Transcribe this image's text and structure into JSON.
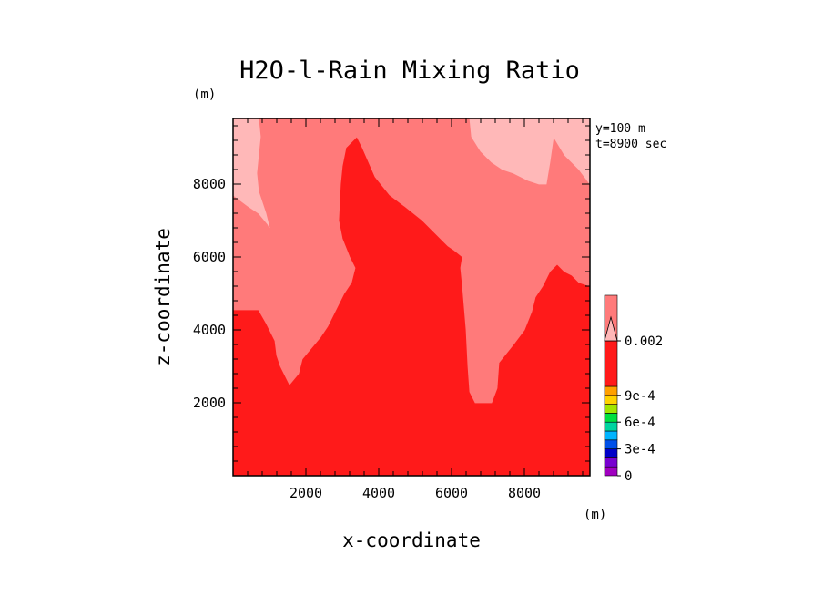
{
  "chart_data": {
    "type": "heatmap",
    "title": "H2O-l-Rain Mixing Ratio",
    "xlabel": "x-coordinate",
    "ylabel": "z-coordinate",
    "x_unit": "(m)",
    "y_unit": "(m)",
    "xlim": [
      0,
      9800
    ],
    "ylim": [
      0,
      9800
    ],
    "xticks": [
      2000,
      4000,
      6000,
      8000
    ],
    "yticks": [
      2000,
      4000,
      6000,
      8000
    ],
    "annotations": [
      "y=100 m",
      "t=8900 sec"
    ],
    "colorbar": {
      "tick_labels": [
        "0",
        "3e-4",
        "6e-4",
        "9e-4",
        "0.002"
      ],
      "tick_values": [
        0,
        0.0003,
        0.0006,
        0.0009,
        0.002
      ],
      "levels": [
        0,
        0.0001,
        0.0002,
        0.0003,
        0.0004,
        0.0005,
        0.0006,
        0.0007,
        0.0008,
        0.0009,
        0.001,
        0.002
      ],
      "colors": [
        "#a000c0",
        "#7800d0",
        "#0000c8",
        "#0050e8",
        "#00b4ff",
        "#00d4a0",
        "#00e040",
        "#a0e600",
        "#ffd200",
        "#ffa000",
        "#ff1a1a",
        "#ff7a7a"
      ],
      "extend_color": "#ffb8b8"
    },
    "regions": [
      {
        "name": "0.001-0.002",
        "color": "#ff1a1a",
        "polygon": [
          [
            0,
            0
          ],
          [
            9800,
            0
          ],
          [
            9800,
            9800
          ],
          [
            0,
            9800
          ]
        ]
      },
      {
        "name": "0.002 band",
        "color": "#ff7a7a",
        "polygon": [
          [
            0,
            4550
          ],
          [
            700,
            4550
          ],
          [
            900,
            4200
          ],
          [
            1150,
            3700
          ],
          [
            1200,
            3300
          ],
          [
            1300,
            3000
          ],
          [
            1550,
            2500
          ],
          [
            1800,
            2800
          ],
          [
            1900,
            3200
          ],
          [
            2150,
            3500
          ],
          [
            2400,
            3800
          ],
          [
            2600,
            4100
          ],
          [
            2900,
            4700
          ],
          [
            3050,
            5000
          ],
          [
            3250,
            5300
          ],
          [
            3350,
            5700
          ],
          [
            3200,
            6000
          ],
          [
            3000,
            6500
          ],
          [
            2900,
            7000
          ],
          [
            2950,
            8000
          ],
          [
            3000,
            8500
          ],
          [
            3100,
            9000
          ],
          [
            3400,
            9300
          ],
          [
            3550,
            9000
          ],
          [
            3900,
            8200
          ],
          [
            4300,
            7700
          ],
          [
            4700,
            7400
          ],
          [
            5200,
            7000
          ],
          [
            5600,
            6600
          ],
          [
            5900,
            6300
          ],
          [
            6050,
            6200
          ],
          [
            6300,
            6000
          ],
          [
            6250,
            5700
          ],
          [
            6300,
            5200
          ],
          [
            6350,
            4600
          ],
          [
            6400,
            4000
          ],
          [
            6450,
            3000
          ],
          [
            6500,
            2300
          ],
          [
            6650,
            2000
          ],
          [
            7100,
            2000
          ],
          [
            7250,
            2400
          ],
          [
            7300,
            3100
          ],
          [
            7700,
            3600
          ],
          [
            8000,
            4000
          ],
          [
            8200,
            4500
          ],
          [
            8300,
            4900
          ],
          [
            8500,
            5200
          ],
          [
            8700,
            5600
          ],
          [
            8900,
            5800
          ],
          [
            9100,
            5600
          ],
          [
            9300,
            5500
          ],
          [
            9500,
            5300
          ],
          [
            9800,
            5200
          ],
          [
            9800,
            9800
          ],
          [
            0,
            9800
          ]
        ]
      },
      {
        "name": ">0.002 left",
        "color": "#ffb8b8",
        "polygon": [
          [
            0,
            7700
          ],
          [
            400,
            7400
          ],
          [
            700,
            7200
          ],
          [
            950,
            6900
          ],
          [
            1000,
            6800
          ],
          [
            900,
            7200
          ],
          [
            700,
            7800
          ],
          [
            650,
            8300
          ],
          [
            700,
            8800
          ],
          [
            750,
            9300
          ],
          [
            700,
            9800
          ],
          [
            0,
            9800
          ]
        ]
      },
      {
        "name": ">0.002 upper right",
        "color": "#ffb8b8",
        "polygon": [
          [
            6500,
            9800
          ],
          [
            6550,
            9300
          ],
          [
            6800,
            8900
          ],
          [
            7100,
            8600
          ],
          [
            7400,
            8400
          ],
          [
            7700,
            8300
          ],
          [
            8100,
            8100
          ],
          [
            8400,
            8000
          ],
          [
            8600,
            8000
          ],
          [
            8700,
            8600
          ],
          [
            8800,
            9300
          ],
          [
            9100,
            8800
          ],
          [
            9500,
            8400
          ],
          [
            9800,
            8000
          ],
          [
            9800,
            9800
          ]
        ]
      }
    ]
  }
}
